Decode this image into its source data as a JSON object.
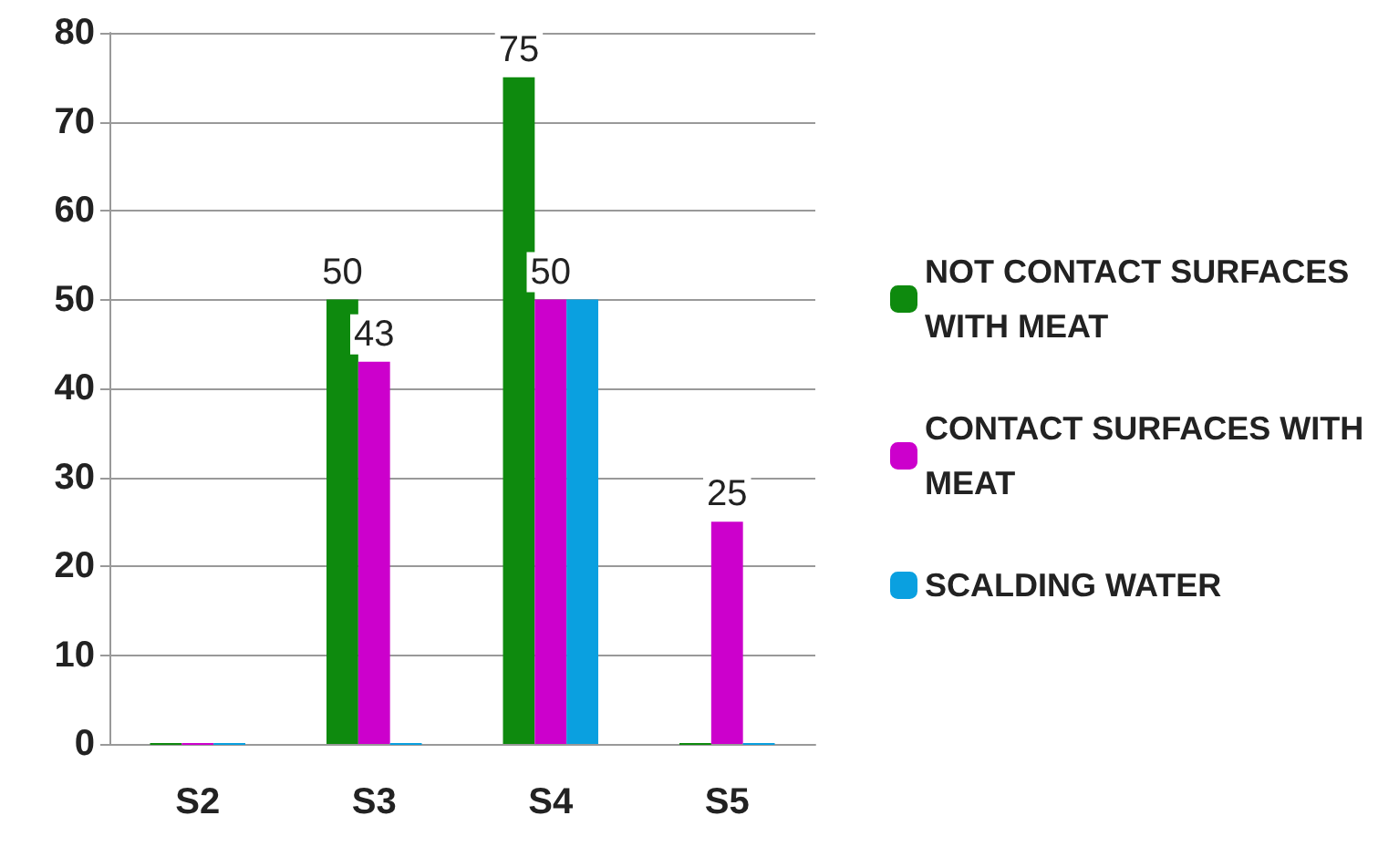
{
  "chart_data": {
    "type": "bar",
    "categories": [
      "S2",
      "S3",
      "S4",
      "S5"
    ],
    "series": [
      {
        "name": "NOT CONTACT SURFACES WITH MEAT",
        "color": "#0e8a0e",
        "values": [
          0,
          50,
          75,
          0
        ],
        "value_labels": [
          null,
          "50",
          "75",
          null
        ]
      },
      {
        "name": "CONTACT SURFACES WITH MEAT",
        "color": "#cc00cc",
        "values": [
          0,
          43,
          50,
          25
        ],
        "value_labels": [
          null,
          "43",
          "50",
          "25"
        ]
      },
      {
        "name": "SCALDING WATER",
        "color": "#0aa0e0",
        "values": [
          0,
          0,
          50,
          0
        ],
        "value_labels": [
          null,
          null,
          null,
          null
        ]
      }
    ],
    "ylim": [
      0,
      80
    ],
    "yticks": [
      0,
      10,
      20,
      30,
      40,
      50,
      60,
      70,
      80
    ],
    "grid": "y",
    "legend": "right"
  }
}
